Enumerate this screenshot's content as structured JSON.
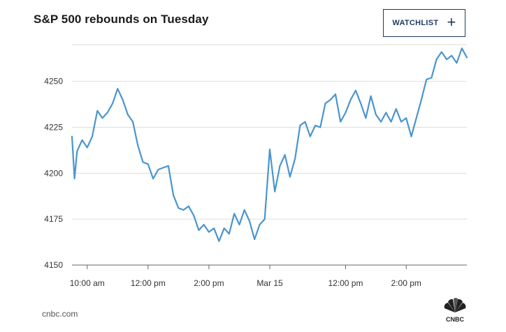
{
  "header": {
    "title": "S&P 500 rebounds on Tuesday",
    "watchlist_label": "WATCHLIST",
    "watchlist_icon": "plus-icon"
  },
  "footer": {
    "source": "cnbc.com",
    "logo_text": "CNBC"
  },
  "colors": {
    "line": "#4a95cf",
    "grid": "#dddddd",
    "axis": "#666666",
    "button_border": "#1e3a5f"
  },
  "chart_data": {
    "type": "line",
    "title": "S&P 500 rebounds on Tuesday",
    "xlabel": "",
    "ylabel": "",
    "ylim": [
      4150,
      4270
    ],
    "yticks": [
      4150,
      4175,
      4200,
      4225,
      4250
    ],
    "grid": true,
    "xlim": [
      "2021-03-12 09:30",
      "2021-03-15 16:00"
    ],
    "xticks": [
      {
        "t": "2021-03-12 10:00",
        "label": "10:00 am"
      },
      {
        "t": "2021-03-12 12:00",
        "label": "12:00 pm"
      },
      {
        "t": "2021-03-12 14:00",
        "label": "2:00 pm"
      },
      {
        "t": "2021-03-15 09:30",
        "label": "Mar 15"
      },
      {
        "t": "2021-03-15 12:00",
        "label": "12:00 pm"
      },
      {
        "t": "2021-03-15 14:00",
        "label": "2:00 pm"
      }
    ],
    "series": [
      {
        "points": [
          [
            "2021-03-12 09:30",
            4220
          ],
          [
            "2021-03-12 09:35",
            4197
          ],
          [
            "2021-03-12 09:40",
            4212
          ],
          [
            "2021-03-12 09:50",
            4218
          ],
          [
            "2021-03-12 10:00",
            4214
          ],
          [
            "2021-03-12 10:10",
            4220
          ],
          [
            "2021-03-12 10:20",
            4234
          ],
          [
            "2021-03-12 10:30",
            4230
          ],
          [
            "2021-03-12 10:40",
            4233
          ],
          [
            "2021-03-12 10:50",
            4238
          ],
          [
            "2021-03-12 11:00",
            4246
          ],
          [
            "2021-03-12 11:10",
            4240
          ],
          [
            "2021-03-12 11:20",
            4232
          ],
          [
            "2021-03-12 11:30",
            4228
          ],
          [
            "2021-03-12 11:40",
            4215
          ],
          [
            "2021-03-12 11:50",
            4206
          ],
          [
            "2021-03-12 12:00",
            4205
          ],
          [
            "2021-03-12 12:10",
            4197
          ],
          [
            "2021-03-12 12:20",
            4202
          ],
          [
            "2021-03-12 12:30",
            4203
          ],
          [
            "2021-03-12 12:40",
            4204
          ],
          [
            "2021-03-12 12:50",
            4188
          ],
          [
            "2021-03-12 13:00",
            4181
          ],
          [
            "2021-03-12 13:10",
            4180
          ],
          [
            "2021-03-12 13:20",
            4182
          ],
          [
            "2021-03-12 13:30",
            4177
          ],
          [
            "2021-03-12 13:40",
            4169
          ],
          [
            "2021-03-12 13:50",
            4172
          ],
          [
            "2021-03-12 14:00",
            4168
          ],
          [
            "2021-03-12 14:10",
            4170
          ],
          [
            "2021-03-12 14:20",
            4163
          ],
          [
            "2021-03-12 14:30",
            4170
          ],
          [
            "2021-03-12 14:40",
            4167
          ],
          [
            "2021-03-12 14:50",
            4178
          ],
          [
            "2021-03-12 15:00",
            4172
          ],
          [
            "2021-03-12 15:10",
            4180
          ],
          [
            "2021-03-12 15:20",
            4174
          ],
          [
            "2021-03-12 15:30",
            4164
          ],
          [
            "2021-03-12 15:40",
            4172
          ],
          [
            "2021-03-12 15:50",
            4175
          ],
          [
            "2021-03-15 09:30",
            4213
          ],
          [
            "2021-03-15 09:40",
            4190
          ],
          [
            "2021-03-15 09:50",
            4204
          ],
          [
            "2021-03-15 10:00",
            4210
          ],
          [
            "2021-03-15 10:10",
            4198
          ],
          [
            "2021-03-15 10:20",
            4208
          ],
          [
            "2021-03-15 10:30",
            4226
          ],
          [
            "2021-03-15 10:40",
            4228
          ],
          [
            "2021-03-15 10:50",
            4220
          ],
          [
            "2021-03-15 11:00",
            4226
          ],
          [
            "2021-03-15 11:10",
            4225
          ],
          [
            "2021-03-15 11:20",
            4238
          ],
          [
            "2021-03-15 11:30",
            4240
          ],
          [
            "2021-03-15 11:40",
            4243
          ],
          [
            "2021-03-15 11:50",
            4228
          ],
          [
            "2021-03-15 12:00",
            4233
          ],
          [
            "2021-03-15 12:10",
            4240
          ],
          [
            "2021-03-15 12:20",
            4245
          ],
          [
            "2021-03-15 12:30",
            4238
          ],
          [
            "2021-03-15 12:40",
            4230
          ],
          [
            "2021-03-15 12:50",
            4242
          ],
          [
            "2021-03-15 13:00",
            4232
          ],
          [
            "2021-03-15 13:10",
            4228
          ],
          [
            "2021-03-15 13:20",
            4233
          ],
          [
            "2021-03-15 13:30",
            4228
          ],
          [
            "2021-03-15 13:40",
            4235
          ],
          [
            "2021-03-15 13:50",
            4228
          ],
          [
            "2021-03-15 14:00",
            4230
          ],
          [
            "2021-03-15 14:10",
            4220
          ],
          [
            "2021-03-15 14:20",
            4230
          ],
          [
            "2021-03-15 14:30",
            4240
          ],
          [
            "2021-03-15 14:40",
            4251
          ],
          [
            "2021-03-15 14:50",
            4252
          ],
          [
            "2021-03-15 15:00",
            4262
          ],
          [
            "2021-03-15 15:10",
            4266
          ],
          [
            "2021-03-15 15:20",
            4262
          ],
          [
            "2021-03-15 15:30",
            4264
          ],
          [
            "2021-03-15 15:40",
            4260
          ],
          [
            "2021-03-15 15:50",
            4268
          ],
          [
            "2021-03-15 16:00",
            4263
          ]
        ]
      }
    ]
  }
}
